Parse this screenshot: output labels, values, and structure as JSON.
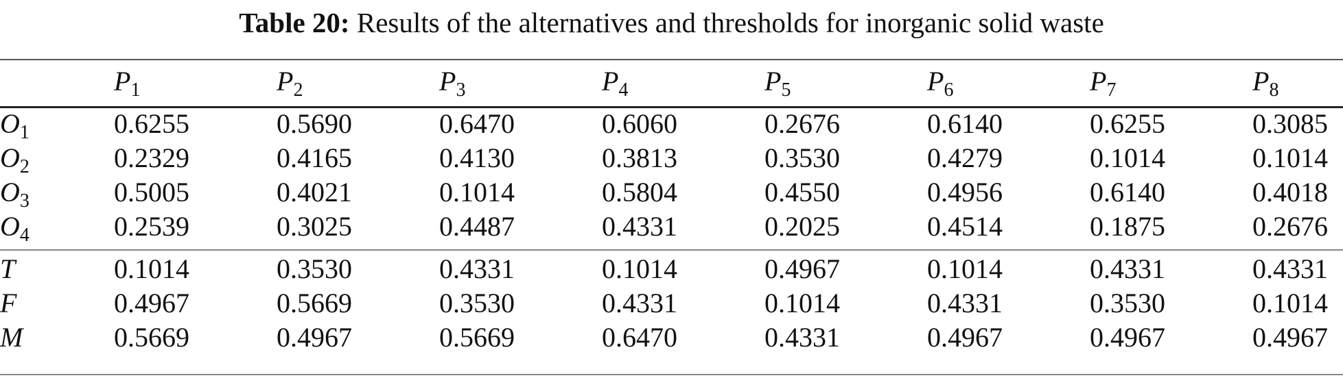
{
  "caption": {
    "label": "Table 20:",
    "text": "Results of the alternatives and thresholds for inorganic solid waste"
  },
  "table": {
    "columns": [
      {
        "sym": "P",
        "sub": "1"
      },
      {
        "sym": "P",
        "sub": "2"
      },
      {
        "sym": "P",
        "sub": "3"
      },
      {
        "sym": "P",
        "sub": "4"
      },
      {
        "sym": "P",
        "sub": "5"
      },
      {
        "sym": "P",
        "sub": "6"
      },
      {
        "sym": "P",
        "sub": "7"
      },
      {
        "sym": "P",
        "sub": "8"
      }
    ],
    "rows": [
      {
        "sym": "O",
        "sub": "1",
        "values": [
          "0.6255",
          "0.5690",
          "0.6470",
          "0.6060",
          "0.2676",
          "0.6140",
          "0.6255",
          "0.3085"
        ]
      },
      {
        "sym": "O",
        "sub": "2",
        "values": [
          "0.2329",
          "0.4165",
          "0.4130",
          "0.3813",
          "0.3530",
          "0.4279",
          "0.1014",
          "0.1014"
        ]
      },
      {
        "sym": "O",
        "sub": "3",
        "values": [
          "0.5005",
          "0.4021",
          "0.1014",
          "0.5804",
          "0.4550",
          "0.4956",
          "0.6140",
          "0.4018"
        ]
      },
      {
        "sym": "O",
        "sub": "4",
        "values": [
          "0.2539",
          "0.3025",
          "0.4487",
          "0.4331",
          "0.2025",
          "0.4514",
          "0.1875",
          "0.2676"
        ]
      },
      {
        "sym": "T",
        "sub": "",
        "values": [
          "0.1014",
          "0.3530",
          "0.4331",
          "0.1014",
          "0.4967",
          "0.1014",
          "0.4331",
          "0.4331"
        ]
      },
      {
        "sym": "F",
        "sub": "",
        "values": [
          "0.4967",
          "0.5669",
          "0.3530",
          "0.4331",
          "0.1014",
          "0.4331",
          "0.3530",
          "0.1014"
        ]
      },
      {
        "sym": "M",
        "sub": "",
        "values": [
          "0.5669",
          "0.4967",
          "0.5669",
          "0.6470",
          "0.4331",
          "0.4967",
          "0.4967",
          "0.4967"
        ]
      }
    ]
  }
}
